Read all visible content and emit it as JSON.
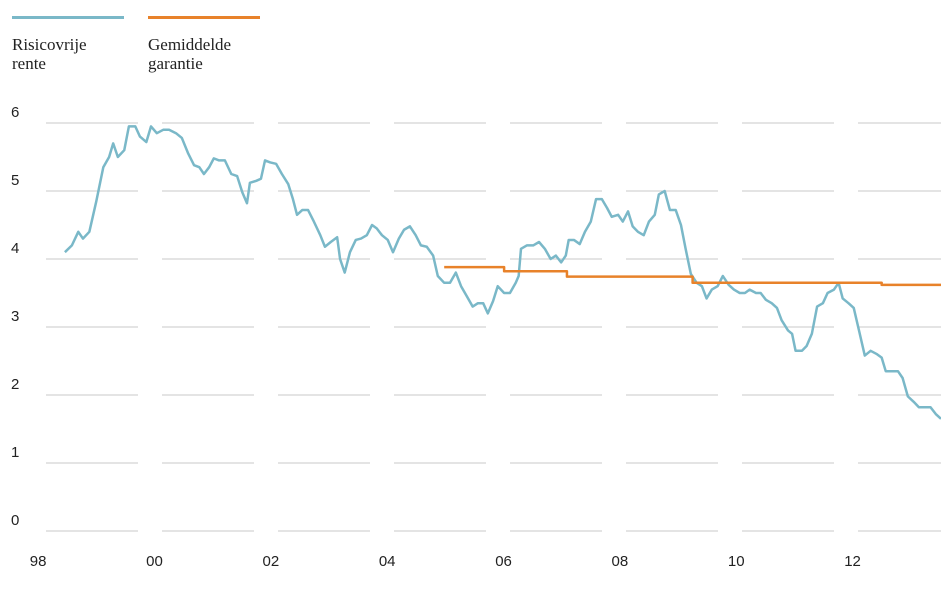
{
  "chart_data": {
    "type": "line",
    "xlim": [
      1997.86,
      2013.52
    ],
    "xticks": [
      {
        "value": 1998,
        "label": "98"
      },
      {
        "value": 2000,
        "label": "00"
      },
      {
        "value": 2002,
        "label": "02"
      },
      {
        "value": 2004,
        "label": "04"
      },
      {
        "value": 2006,
        "label": "06"
      },
      {
        "value": 2008,
        "label": "08"
      },
      {
        "value": 2010,
        "label": "10"
      },
      {
        "value": 2012,
        "label": "12"
      }
    ],
    "ylim": [
      0,
      6
    ],
    "yticks": [
      0,
      1,
      2,
      3,
      4,
      5,
      6
    ],
    "grid": true,
    "legend": "top-left",
    "series": [
      {
        "name": "Risicovrije rente",
        "color": "#7ab8c8",
        "x": [
          1998.46,
          1998.58,
          1998.69,
          1998.77,
          1998.88,
          1999.0,
          1999.12,
          1999.22,
          1999.29,
          1999.37,
          1999.48,
          1999.56,
          1999.67,
          1999.75,
          1999.86,
          1999.94,
          2000.04,
          2000.15,
          2000.25,
          2000.37,
          2000.47,
          2000.58,
          2000.68,
          2000.77,
          2000.85,
          2000.94,
          2001.02,
          2001.11,
          2001.21,
          2001.32,
          2001.42,
          2001.51,
          2001.59,
          2001.64,
          2001.75,
          2001.83,
          2001.9,
          2001.99,
          2002.09,
          2002.19,
          2002.3,
          2002.38,
          2002.45,
          2002.54,
          2002.64,
          2002.74,
          2002.85,
          2002.93,
          2003.03,
          2003.14,
          2003.19,
          2003.27,
          2003.36,
          2003.46,
          2003.55,
          2003.65,
          2003.74,
          2003.82,
          2003.91,
          2004.01,
          2004.1,
          2004.2,
          2004.29,
          2004.39,
          2004.49,
          2004.58,
          2004.68,
          2004.79,
          2004.87,
          2004.98,
          2005.08,
          2005.18,
          2005.27,
          2005.37,
          2005.47,
          2005.56,
          2005.65,
          2005.73,
          2005.82,
          2005.9,
          2006.01,
          2006.11,
          2006.21,
          2006.26,
          2006.3,
          2006.4,
          2006.51,
          2006.61,
          2006.71,
          2006.81,
          2006.9,
          2006.99,
          2007.07,
          2007.12,
          2007.21,
          2007.31,
          2007.4,
          2007.5,
          2007.59,
          2007.69,
          2007.78,
          2007.86,
          2007.97,
          2008.05,
          2008.14,
          2008.22,
          2008.31,
          2008.41,
          2008.5,
          2008.6,
          2008.67,
          2008.77,
          2008.86,
          2008.96,
          2009.05,
          2009.13,
          2009.22,
          2009.32,
          2009.41,
          2009.49,
          2009.58,
          2009.68,
          2009.77,
          2009.87,
          2009.96,
          2010.06,
          2010.15,
          2010.23,
          2010.34,
          2010.42,
          2010.51,
          2010.61,
          2010.7,
          2010.78,
          2010.89,
          2010.96,
          2011.02,
          2011.13,
          2011.21,
          2011.3,
          2011.39,
          2011.49,
          2011.57,
          2011.68,
          2011.76,
          2011.83,
          2011.93,
          2012.02,
          2012.11,
          2012.21,
          2012.31,
          2012.42,
          2012.5,
          2012.57,
          2012.67,
          2012.78,
          2012.86,
          2012.95,
          2013.05,
          2013.14,
          2013.24,
          2013.34,
          2013.43,
          2013.52
        ],
        "values": [
          4.1,
          4.2,
          4.4,
          4.3,
          4.4,
          4.85,
          5.35,
          5.5,
          5.7,
          5.5,
          5.6,
          5.95,
          5.95,
          5.8,
          5.72,
          5.95,
          5.85,
          5.9,
          5.9,
          5.85,
          5.78,
          5.55,
          5.38,
          5.35,
          5.25,
          5.35,
          5.48,
          5.45,
          5.45,
          5.25,
          5.22,
          4.98,
          4.82,
          5.12,
          5.15,
          5.18,
          5.45,
          5.42,
          5.4,
          5.25,
          5.1,
          4.88,
          4.65,
          4.72,
          4.72,
          4.55,
          4.35,
          4.18,
          4.25,
          4.32,
          4.0,
          3.8,
          4.1,
          4.28,
          4.3,
          4.35,
          4.5,
          4.45,
          4.35,
          4.28,
          4.1,
          4.3,
          4.43,
          4.48,
          4.35,
          4.2,
          4.18,
          4.05,
          3.75,
          3.65,
          3.65,
          3.8,
          3.6,
          3.45,
          3.3,
          3.35,
          3.35,
          3.2,
          3.38,
          3.6,
          3.5,
          3.5,
          3.65,
          3.75,
          4.15,
          4.2,
          4.2,
          4.25,
          4.15,
          4.0,
          4.05,
          3.95,
          4.05,
          4.28,
          4.28,
          4.22,
          4.4,
          4.55,
          4.88,
          4.88,
          4.75,
          4.62,
          4.65,
          4.55,
          4.7,
          4.48,
          4.4,
          4.35,
          4.55,
          4.65,
          4.95,
          5.0,
          4.72,
          4.72,
          4.5,
          4.15,
          3.78,
          3.65,
          3.6,
          3.42,
          3.55,
          3.6,
          3.75,
          3.62,
          3.55,
          3.5,
          3.5,
          3.55,
          3.5,
          3.5,
          3.4,
          3.35,
          3.28,
          3.1,
          2.95,
          2.9,
          2.65,
          2.65,
          2.72,
          2.9,
          3.3,
          3.35,
          3.5,
          3.55,
          3.65,
          3.42,
          3.35,
          3.28,
          2.95,
          2.58,
          2.65,
          2.6,
          2.55,
          2.35,
          2.35,
          2.35,
          2.25,
          1.98,
          1.9,
          1.82,
          1.82,
          1.82,
          1.72,
          1.65
        ]
      },
      {
        "name": "Gemiddelde garantie",
        "color": "#e8822a",
        "x": [
          2004.98,
          2006.01,
          2006.01,
          2007.09,
          2007.09,
          2009.25,
          2009.25,
          2012.5,
          2012.5,
          2013.52
        ],
        "values": [
          3.88,
          3.88,
          3.82,
          3.82,
          3.74,
          3.74,
          3.65,
          3.65,
          3.62,
          3.62
        ]
      }
    ]
  }
}
